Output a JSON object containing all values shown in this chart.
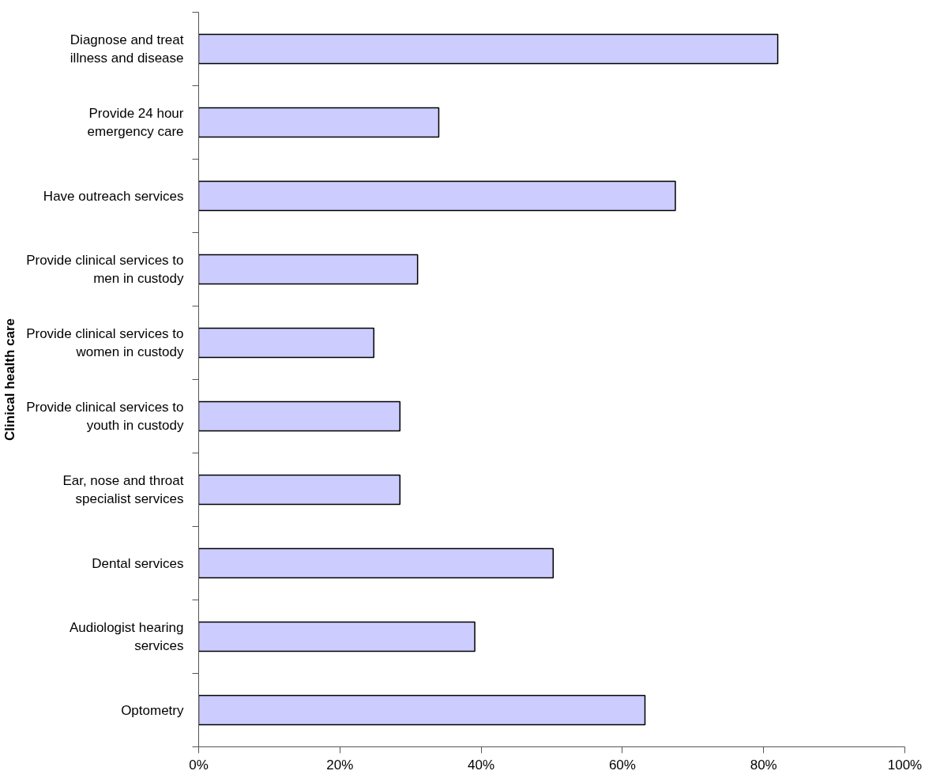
{
  "chart_data": {
    "type": "bar",
    "orientation": "horizontal",
    "ylabel": "Clinical health care",
    "categories": [
      "Diagnose and treat\nillness and disease",
      "Provide 24 hour\nemergency care",
      "Have outreach services",
      "Provide clinical services to\nmen in custody",
      "Provide clinical services to\nwomen in custody",
      "Provide clinical services to\nyouth in custody",
      "Ear, nose and throat\nspecialist services",
      "Dental services",
      "Audiologist hearing\nservices",
      "Optometry"
    ],
    "values": [
      82,
      34,
      67.5,
      31,
      24.8,
      28.5,
      28.5,
      50.2,
      39.1,
      63.2
    ],
    "color": "#ccccff",
    "xlim": [
      0,
      100
    ],
    "xticks": [
      {
        "value": 0,
        "label": "0%"
      },
      {
        "value": 20,
        "label": "20%"
      },
      {
        "value": 40,
        "label": "40%"
      },
      {
        "value": 60,
        "label": "60%"
      },
      {
        "value": 80,
        "label": "80%"
      },
      {
        "value": 100,
        "label": "100%"
      }
    ],
    "grid": false
  }
}
